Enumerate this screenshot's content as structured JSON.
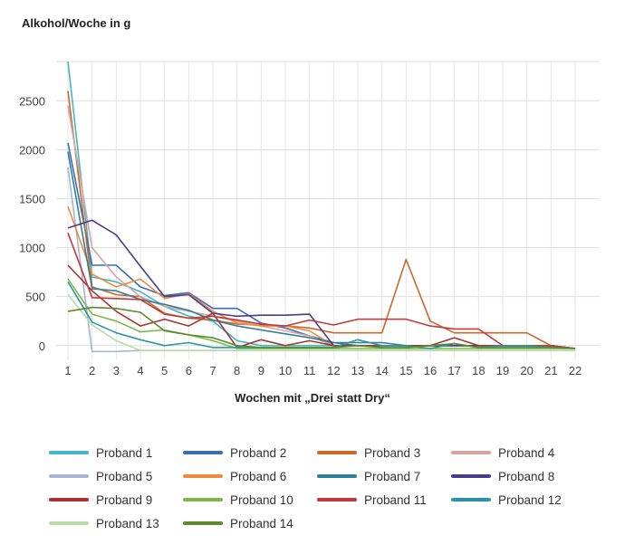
{
  "chart_data": {
    "type": "line",
    "ylabel": "Alkohol/Woche in g",
    "xlabel": "Wochen mit „Drei statt Dry“",
    "x": [
      1,
      2,
      3,
      4,
      5,
      6,
      7,
      8,
      9,
      10,
      11,
      12,
      13,
      14,
      15,
      16,
      17,
      18,
      19,
      20,
      21,
      22
    ],
    "ylim": [
      -150,
      2900
    ],
    "yticks": [
      0,
      500,
      1000,
      1500,
      2000,
      2500
    ],
    "grid": true,
    "legend_position": "bottom",
    "series": [
      {
        "name": "Proband 1",
        "color": "#3fb6c9",
        "values": [
          2900,
          700,
          650,
          550,
          400,
          300,
          250,
          50,
          0,
          0,
          0,
          0,
          0,
          0,
          0,
          0,
          0,
          0,
          0,
          0,
          0,
          -30
        ]
      },
      {
        "name": "Proband 2",
        "color": "#3a6db5",
        "values": [
          2070,
          820,
          820,
          600,
          510,
          540,
          380,
          380,
          230,
          180,
          100,
          30,
          0,
          0,
          0,
          0,
          0,
          0,
          0,
          0,
          0,
          -30
        ]
      },
      {
        "name": "Proband 3",
        "color": "#c9692a",
        "values": [
          2600,
          600,
          520,
          500,
          330,
          280,
          260,
          220,
          210,
          200,
          180,
          130,
          130,
          130,
          880,
          250,
          130,
          130,
          130,
          130,
          0,
          -30
        ]
      },
      {
        "name": "Proband 4",
        "color": "#d6a2a2",
        "values": [
          2450,
          1000,
          700,
          500,
          400,
          350,
          300,
          250,
          200,
          150,
          100,
          0,
          0,
          0,
          0,
          0,
          0,
          0,
          0,
          0,
          0,
          -30
        ]
      },
      {
        "name": "Proband 5",
        "color": "#a3b6d6",
        "values": [
          1820,
          -60,
          -60,
          -50,
          -50,
          -50,
          -50,
          -50,
          -50,
          -50,
          -50,
          -50,
          -50,
          -50,
          -50,
          -50,
          -50,
          -50,
          -50,
          -50,
          -50,
          -50
        ]
      },
      {
        "name": "Proband 6",
        "color": "#f08a3a",
        "values": [
          1420,
          730,
          600,
          680,
          480,
          530,
          350,
          230,
          200,
          200,
          150,
          0,
          0,
          0,
          0,
          0,
          0,
          0,
          0,
          0,
          0,
          -30
        ]
      },
      {
        "name": "Proband 7",
        "color": "#2e7f97",
        "values": [
          1980,
          580,
          560,
          470,
          420,
          360,
          260,
          200,
          160,
          120,
          80,
          30,
          30,
          30,
          0,
          0,
          0,
          0,
          0,
          0,
          0,
          -30
        ]
      },
      {
        "name": "Proband 8",
        "color": "#4b3b8c",
        "values": [
          1200,
          1280,
          1130,
          810,
          500,
          520,
          330,
          300,
          310,
          310,
          320,
          0,
          0,
          0,
          0,
          0,
          0,
          0,
          0,
          0,
          0,
          -30
        ]
      },
      {
        "name": "Proband 9",
        "color": "#a83232",
        "values": [
          820,
          560,
          350,
          200,
          270,
          200,
          330,
          -20,
          60,
          0,
          50,
          0,
          0,
          0,
          0,
          0,
          80,
          0,
          0,
          0,
          0,
          -30
        ]
      },
      {
        "name": "Proband 10",
        "color": "#7fb84a",
        "values": [
          680,
          320,
          250,
          140,
          160,
          110,
          50,
          -30,
          -30,
          -30,
          -30,
          -30,
          -30,
          -30,
          -30,
          -30,
          -30,
          -30,
          -30,
          -30,
          -30,
          -30
        ]
      },
      {
        "name": "Proband 11",
        "color": "#c2393b",
        "values": [
          1150,
          490,
          480,
          470,
          320,
          280,
          300,
          260,
          220,
          200,
          260,
          210,
          270,
          270,
          270,
          200,
          170,
          170,
          0,
          0,
          0,
          -30
        ]
      },
      {
        "name": "Proband 12",
        "color": "#2b93a8",
        "values": [
          650,
          240,
          130,
          60,
          0,
          30,
          -20,
          -20,
          -20,
          -20,
          -20,
          -20,
          60,
          0,
          0,
          -30,
          20,
          -20,
          0,
          0,
          -20,
          -30
        ]
      },
      {
        "name": "Proband 13",
        "color": "#b9dba4",
        "values": [
          520,
          210,
          50,
          -50,
          -50,
          -50,
          -50,
          -50,
          -50,
          -50,
          -50,
          -50,
          -50,
          -50,
          -50,
          -50,
          -50,
          -50,
          -50,
          -50,
          -50,
          -50
        ]
      },
      {
        "name": "Proband 14",
        "color": "#5a8a2e",
        "values": [
          350,
          390,
          380,
          340,
          150,
          110,
          80,
          0,
          -20,
          -20,
          -20,
          -20,
          0,
          -20,
          -20,
          0,
          20,
          -20,
          -20,
          -20,
          -20,
          -30
        ]
      }
    ]
  }
}
